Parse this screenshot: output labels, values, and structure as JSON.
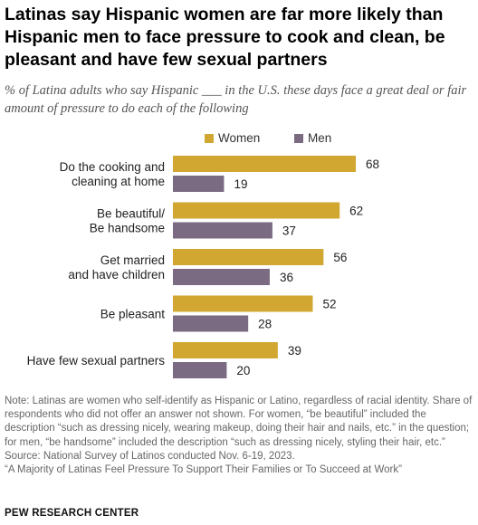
{
  "title": "Latinas say Hispanic women are far more likely than Hispanic men to face pressure to cook and clean, be pleasant and have few sexual partners",
  "subtitle": "% of Latina adults who say Hispanic ___ in the U.S. these days face a great deal or fair amount of pressure to do each of the following",
  "chart_data": {
    "type": "bar",
    "orientation": "horizontal",
    "categories": [
      [
        "Do the cooking and",
        "cleaning at home"
      ],
      [
        "Be beautiful/",
        "Be handsome"
      ],
      [
        "Get married",
        "and have children"
      ],
      [
        "Be pleasant"
      ],
      [
        "Have few sexual partners"
      ]
    ],
    "series": [
      {
        "name": "Women",
        "color": "#d1a732",
        "values": [
          68,
          62,
          56,
          52,
          39
        ]
      },
      {
        "name": "Men",
        "color": "#7b6b82",
        "values": [
          19,
          37,
          36,
          28,
          20
        ]
      }
    ],
    "xlim": [
      0,
      75
    ],
    "legend_position": "top",
    "grid": false,
    "data_labels": true
  },
  "notes": {
    "note": "Note: Latinas are women who self-identify as Hispanic or Latino, regardless of racial identity. Share of respondents who did not offer an answer not shown. For women, “be beautiful” included the description “such as dressing nicely, wearing makeup, doing their hair and nails, etc.” in the question; for men, “be handsome” included the description “such as dressing nicely, styling their hair, etc.”",
    "source": "Source: National Survey of Latinos conducted Nov. 6-19, 2023.",
    "report": "“A Majority of Latinas Feel Pressure To Support Their Families or To Succeed at Work”"
  },
  "brand": "PEW RESEARCH CENTER"
}
